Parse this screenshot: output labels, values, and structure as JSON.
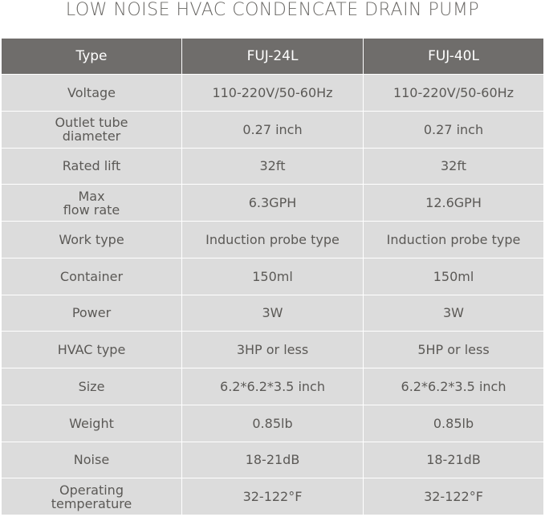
{
  "header": {
    "title": "LOW NOISE HVAC CONDENCATE DRAIN PUMP"
  },
  "table": {
    "columns": [
      "Type",
      "FUJ-24L",
      "FUJ-40L"
    ],
    "rows": [
      [
        "Voltage",
        "110-220V/50-60Hz",
        "110-220V/50-60Hz"
      ],
      [
        "Outlet tube\ndiameter",
        "0.27 inch",
        "0.27 inch"
      ],
      [
        "Rated lift",
        "32ft",
        "32ft"
      ],
      [
        "Max\nflow rate",
        "6.3GPH",
        "12.6GPH"
      ],
      [
        "Work type",
        "Induction probe type",
        "Induction probe type"
      ],
      [
        "Container",
        "150ml",
        "150ml"
      ],
      [
        "Power",
        "3W",
        "3W"
      ],
      [
        "HVAC type",
        "3HP or less",
        "5HP or less"
      ],
      [
        "Size",
        "6.2*6.2*3.5 inch",
        "6.2*6.2*3.5 inch"
      ],
      [
        "Weight",
        "0.85lb",
        "0.85lb"
      ],
      [
        "Noise",
        "18-21dB",
        "18-21dB"
      ],
      [
        "Operating\ntemperature",
        "32-122°F",
        "32-122°F"
      ]
    ]
  }
}
